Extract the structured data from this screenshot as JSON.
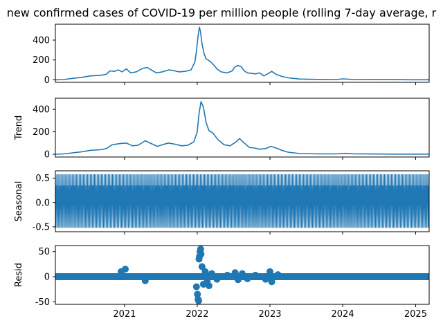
{
  "figure": {
    "title": "new confirmed cases of COVID-19 per million people (rolling 7-day average, r",
    "line_color": "#1f77b4"
  },
  "chart_data": [
    {
      "type": "line",
      "panel": "observed",
      "ylabel": "",
      "xlim": [
        "2020-01-20",
        "2025-03-10"
      ],
      "ylim": [
        -25,
        560
      ],
      "yticks": [
        0,
        200,
        400
      ],
      "xticks": [
        "2021",
        "2022",
        "2023",
        "2024",
        "2025"
      ],
      "x": [
        "2020-01-20",
        "2020-03-01",
        "2020-04-15",
        "2020-06-01",
        "2020-07-15",
        "2020-09-01",
        "2020-10-01",
        "2020-10-20",
        "2020-11-10",
        "2020-12-01",
        "2020-12-20",
        "2021-01-10",
        "2021-02-01",
        "2021-03-01",
        "2021-04-01",
        "2021-04-25",
        "2021-05-15",
        "2021-06-10",
        "2021-07-10",
        "2021-08-10",
        "2021-09-01",
        "2021-10-01",
        "2021-11-01",
        "2021-12-01",
        "2021-12-20",
        "2021-12-28",
        "2022-01-05",
        "2022-01-12",
        "2022-01-18",
        "2022-01-25",
        "2022-02-05",
        "2022-02-15",
        "2022-02-25",
        "2022-03-10",
        "2022-03-25",
        "2022-04-10",
        "2022-05-01",
        "2022-06-01",
        "2022-06-25",
        "2022-07-10",
        "2022-07-25",
        "2022-08-10",
        "2022-08-25",
        "2022-09-10",
        "2022-10-01",
        "2022-10-20",
        "2022-11-10",
        "2022-12-01",
        "2022-12-20",
        "2023-01-10",
        "2023-02-01",
        "2023-03-01",
        "2023-04-01",
        "2023-06-01",
        "2023-09-01",
        "2023-12-01",
        "2024-01-01",
        "2024-03-01",
        "2024-06-01",
        "2024-09-01",
        "2024-12-01",
        "2025-03-10"
      ],
      "y": [
        0,
        3,
        15,
        25,
        40,
        45,
        55,
        90,
        85,
        100,
        80,
        110,
        70,
        80,
        115,
        125,
        100,
        70,
        80,
        100,
        95,
        80,
        85,
        100,
        180,
        290,
        440,
        530,
        480,
        360,
        260,
        210,
        200,
        180,
        150,
        110,
        80,
        70,
        90,
        130,
        145,
        130,
        90,
        70,
        65,
        60,
        70,
        40,
        60,
        85,
        55,
        35,
        20,
        8,
        4,
        3,
        10,
        3,
        2,
        2,
        1,
        1
      ]
    },
    {
      "type": "line",
      "panel": "trend",
      "ylabel": "Trend",
      "xlim": [
        "2020-01-20",
        "2025-03-10"
      ],
      "ylim": [
        -25,
        500
      ],
      "yticks": [
        0,
        200,
        400
      ],
      "x": [
        "2020-01-20",
        "2020-03-01",
        "2020-04-15",
        "2020-06-01",
        "2020-07-15",
        "2020-09-01",
        "2020-10-01",
        "2020-11-01",
        "2020-12-10",
        "2021-01-10",
        "2021-02-10",
        "2021-03-10",
        "2021-04-15",
        "2021-05-15",
        "2021-06-15",
        "2021-07-10",
        "2021-08-10",
        "2021-09-10",
        "2021-10-15",
        "2021-11-15",
        "2021-12-15",
        "2022-01-01",
        "2022-01-10",
        "2022-01-20",
        "2022-02-01",
        "2022-02-15",
        "2022-03-01",
        "2022-03-20",
        "2022-04-15",
        "2022-05-15",
        "2022-06-15",
        "2022-07-15",
        "2022-08-01",
        "2022-08-25",
        "2022-09-20",
        "2022-10-15",
        "2022-11-10",
        "2022-12-10",
        "2023-01-05",
        "2023-02-01",
        "2023-03-01",
        "2023-04-01",
        "2023-06-01",
        "2023-09-01",
        "2023-12-01",
        "2024-01-15",
        "2024-03-01",
        "2024-06-01",
        "2024-09-01",
        "2024-12-01",
        "2025-03-10"
      ],
      "y": [
        0,
        3,
        12,
        22,
        35,
        40,
        50,
        85,
        95,
        100,
        75,
        80,
        120,
        95,
        70,
        85,
        100,
        90,
        75,
        80,
        110,
        200,
        360,
        470,
        420,
        280,
        210,
        190,
        130,
        85,
        75,
        110,
        140,
        100,
        60,
        55,
        45,
        50,
        70,
        55,
        35,
        18,
        6,
        3,
        3,
        8,
        3,
        2,
        1,
        1,
        1
      ]
    },
    {
      "type": "line",
      "panel": "seasonal",
      "ylabel": "Seasonal",
      "xlim": [
        "2020-01-20",
        "2025-03-10"
      ],
      "ylim": [
        -0.6,
        0.65
      ],
      "yticks": [
        -0.5,
        0.0,
        0.5
      ],
      "period_days": 7,
      "amplitude": [
        -0.52,
        0.58
      ],
      "pattern": [
        0.58,
        0.1,
        -0.25,
        -0.52,
        -0.2,
        0.35,
        -0.06
      ]
    },
    {
      "type": "scatter",
      "panel": "resid",
      "ylabel": "Resid",
      "xlim": [
        "2020-01-20",
        "2025-03-10"
      ],
      "ylim": [
        -55,
        62
      ],
      "yticks": [
        -50,
        0,
        50
      ],
      "x": [
        "2020-12-15",
        "2021-01-05",
        "2021-04-15",
        "2021-12-28",
        "2022-01-02",
        "2022-01-05",
        "2022-01-08",
        "2022-01-10",
        "2022-01-12",
        "2022-01-15",
        "2022-01-18",
        "2022-01-20",
        "2022-01-25",
        "2022-02-01",
        "2022-02-10",
        "2022-02-20",
        "2022-03-01",
        "2022-03-15",
        "2022-04-10",
        "2022-06-01",
        "2022-07-10",
        "2022-07-25",
        "2022-08-15",
        "2022-09-10",
        "2022-10-20",
        "2022-12-10",
        "2023-01-01",
        "2023-01-10",
        "2023-02-10"
      ],
      "y": [
        10,
        15,
        -8,
        -20,
        -35,
        -45,
        -48,
        35,
        40,
        50,
        55,
        45,
        20,
        -15,
        10,
        -10,
        -18,
        6,
        -5,
        3,
        8,
        -6,
        6,
        -4,
        3,
        -5,
        10,
        -10,
        4
      ]
    }
  ]
}
